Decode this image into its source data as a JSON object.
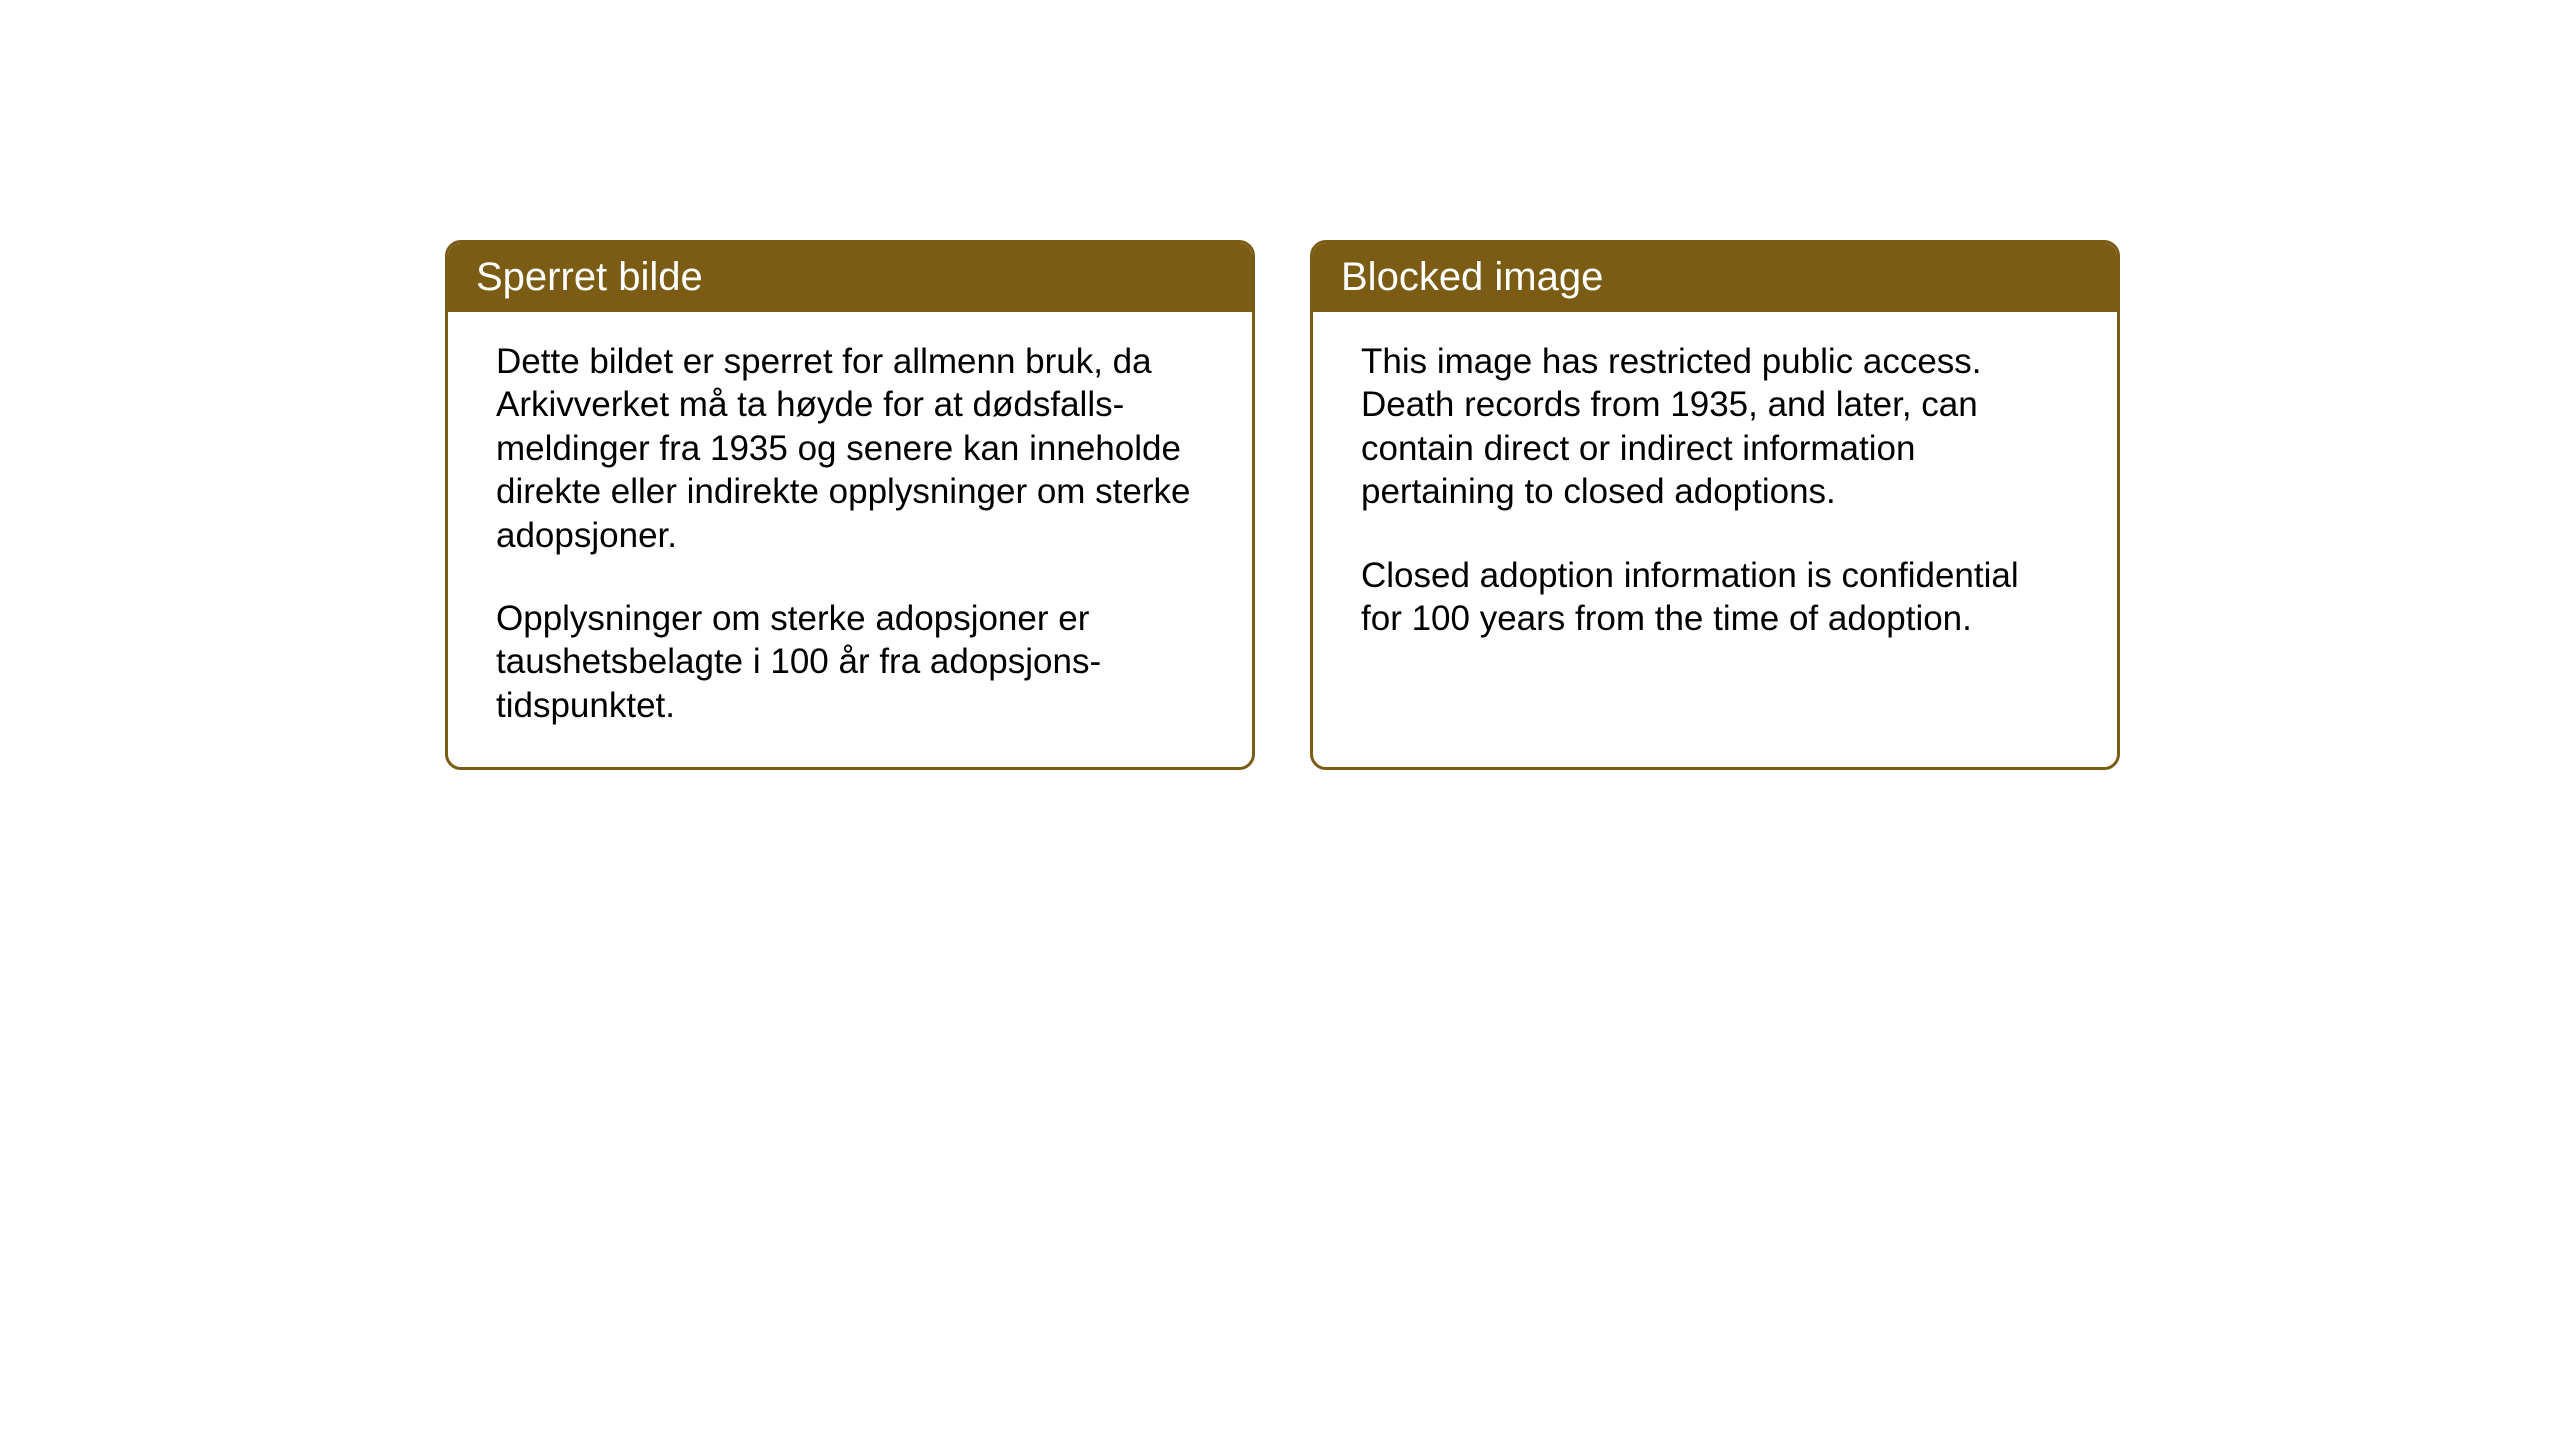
{
  "layout": {
    "background_color": "#ffffff",
    "box_border_color": "#7a5c14",
    "box_header_bg": "#7a5c14",
    "box_header_text_color": "#ffffff",
    "body_text_color": "#000000",
    "border_radius": 16,
    "border_width": 3,
    "header_fontsize": 40,
    "body_fontsize": 35
  },
  "notices": {
    "norwegian": {
      "title": "Sperret bilde",
      "paragraph1": "Dette bildet er sperret for allmenn bruk, da Arkivverket må ta høyde for at dødsfalls-meldinger fra 1935 og senere kan inneholde direkte eller indirekte opplysninger om sterke adopsjoner.",
      "paragraph2": "Opplysninger om sterke adopsjoner er taushetsbelagte i 100 år fra adopsjons-tidspunktet."
    },
    "english": {
      "title": "Blocked image",
      "paragraph1": "This image has restricted public access. Death records from 1935, and later, can contain direct or indirect information pertaining to closed adoptions.",
      "paragraph2": "Closed adoption information is confidential for 100 years from the time of adoption."
    }
  }
}
